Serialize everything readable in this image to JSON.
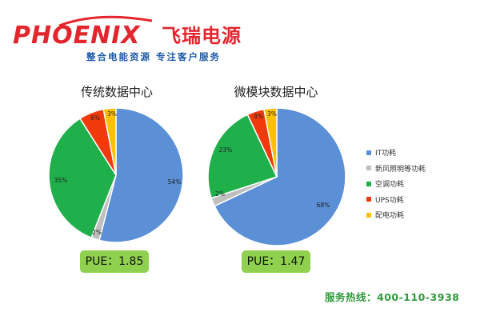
{
  "logo": {
    "brand": "PHOENIX",
    "brand_cn": "飞瑞电源",
    "tagline": "整合电能资源 专注客户服务",
    "color": "#e3262d",
    "tagline_color": "#1e5aa8"
  },
  "chart_data": [
    {
      "type": "pie",
      "title": "传统数据中心",
      "categories": [
        "IT功耗",
        "新风照明等功耗",
        "空调功耗",
        "UPS功耗",
        "配电功耗"
      ],
      "values": [
        54,
        2,
        35,
        6,
        3
      ],
      "labels": [
        "54%",
        "2%",
        "35%",
        "6%",
        "3%"
      ],
      "pue": "PUE：1.85"
    },
    {
      "type": "pie",
      "title": "微模块数据中心",
      "categories": [
        "IT功耗",
        "新风照明等功耗",
        "空调功耗",
        "UPS功耗",
        "配电功耗"
      ],
      "values": [
        68,
        2,
        23,
        4,
        3
      ],
      "labels": [
        "68%",
        "2%",
        "23%",
        "4%",
        "3%"
      ],
      "pue": "PUE：1.47"
    }
  ],
  "legend": {
    "placement": "right",
    "items": [
      {
        "label": "IT功耗",
        "color": "#5b8fd6"
      },
      {
        "label": "新风照明等功耗",
        "color": "#bfbfbf"
      },
      {
        "label": "空调功耗",
        "color": "#1fb04b"
      },
      {
        "label": "UPS功耗",
        "color": "#f03a0c"
      },
      {
        "label": "配电功耗",
        "color": "#ffc000"
      }
    ]
  },
  "hotline": "服务热线：400-110-3938"
}
